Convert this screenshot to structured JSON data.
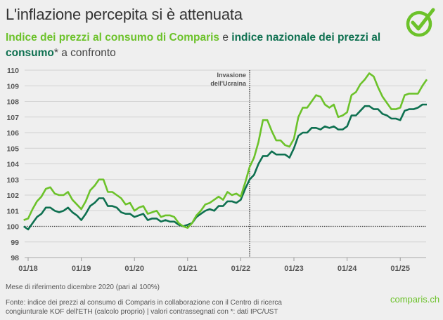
{
  "title": "L'inflazione percepita si è attenuata",
  "subtitle": {
    "part1": "Indice dei prezzi al consumo di Comparis",
    "joiner": " e ",
    "part2": "indice nazionale dei prezzi al consumo",
    "rest": "* a confronto"
  },
  "note": "Mese di riferimento dicembre 2020 (pari al 100%)",
  "source": "Fonte: indice dei prezzi al consumo di Comparis in collaborazione con il Centro di ricerca congiunturale KOF dell'ETH (calcolo proprio) | valori contrassegnati con *: dati IPC/UST",
  "brand": "comparis.ch",
  "colors": {
    "comparis": "#6cc22a",
    "national": "#0e7050",
    "background": "#efefef"
  },
  "chart_data": {
    "type": "line",
    "title": "",
    "xlabel": "",
    "ylabel": "",
    "ylim": [
      98,
      110
    ],
    "yticks": [
      98,
      99,
      100,
      101,
      102,
      103,
      104,
      105,
      106,
      107,
      108,
      109,
      110
    ],
    "xticks": [
      "01/18",
      "01/19",
      "01/20",
      "01/21",
      "01/22",
      "01/23",
      "01/24",
      "01/25"
    ],
    "x_start": "12/2017",
    "x_end": "07/2025",
    "frequency": "monthly",
    "grid": true,
    "reference_line": {
      "value": 100,
      "style": "dotted"
    },
    "annotation": {
      "label_line1": "Invasione",
      "label_line2": "dell'Ucraina",
      "date": "02/2022",
      "style": "dotted vertical line"
    },
    "series": [
      {
        "name": "Indice dei prezzi al consumo di Comparis",
        "color": "#6cc22a",
        "values": [
          100.4,
          100.5,
          101.1,
          101.6,
          101.9,
          102.4,
          102.5,
          102.1,
          102.0,
          102.0,
          102.2,
          101.7,
          101.4,
          101.1,
          101.6,
          102.3,
          102.6,
          103.0,
          103.0,
          102.2,
          102.2,
          102.0,
          101.8,
          101.4,
          101.5,
          101.0,
          101.2,
          101.3,
          100.8,
          100.9,
          101.0,
          100.6,
          100.7,
          100.7,
          100.6,
          100.2,
          100.0,
          99.9,
          100.2,
          100.7,
          101.0,
          101.4,
          101.5,
          101.7,
          101.9,
          101.7,
          102.2,
          102.0,
          102.1,
          101.9,
          102.8,
          103.8,
          104.4,
          105.4,
          106.8,
          106.8,
          106.1,
          105.5,
          105.5,
          105.2,
          105.1,
          105.6,
          107.0,
          107.6,
          107.6,
          108.0,
          108.4,
          108.3,
          107.8,
          107.6,
          107.8,
          107.0,
          107.1,
          107.3,
          108.4,
          108.6,
          109.1,
          109.4,
          109.8,
          109.6,
          108.9,
          108.3,
          107.9,
          107.5,
          107.5,
          107.6,
          108.4,
          108.5,
          108.5,
          108.5,
          109.0,
          109.4
        ]
      },
      {
        "name": "indice nazionale dei prezzi al consumo*",
        "color": "#0e7050",
        "values": [
          100.0,
          99.8,
          100.2,
          100.6,
          100.8,
          101.2,
          101.2,
          101.0,
          100.9,
          101.0,
          101.2,
          100.9,
          100.7,
          100.4,
          100.8,
          101.3,
          101.5,
          101.8,
          101.8,
          101.3,
          101.3,
          101.2,
          100.9,
          100.8,
          100.8,
          100.6,
          100.7,
          100.8,
          100.4,
          100.5,
          100.5,
          100.3,
          100.4,
          100.3,
          100.3,
          100.1,
          100.0,
          100.1,
          100.2,
          100.6,
          100.8,
          101.0,
          101.1,
          101.0,
          101.3,
          101.3,
          101.6,
          101.6,
          101.5,
          101.7,
          102.4,
          103.0,
          103.3,
          104.0,
          104.5,
          104.5,
          104.8,
          104.6,
          104.6,
          104.6,
          104.4,
          105.0,
          105.8,
          106.0,
          106.0,
          106.3,
          106.3,
          106.2,
          106.4,
          106.3,
          106.4,
          106.2,
          106.2,
          106.4,
          107.1,
          107.1,
          107.4,
          107.7,
          107.7,
          107.5,
          107.5,
          107.2,
          107.1,
          106.9,
          106.9,
          106.8,
          107.4,
          107.5,
          107.5,
          107.6,
          107.8,
          107.8
        ]
      }
    ]
  }
}
